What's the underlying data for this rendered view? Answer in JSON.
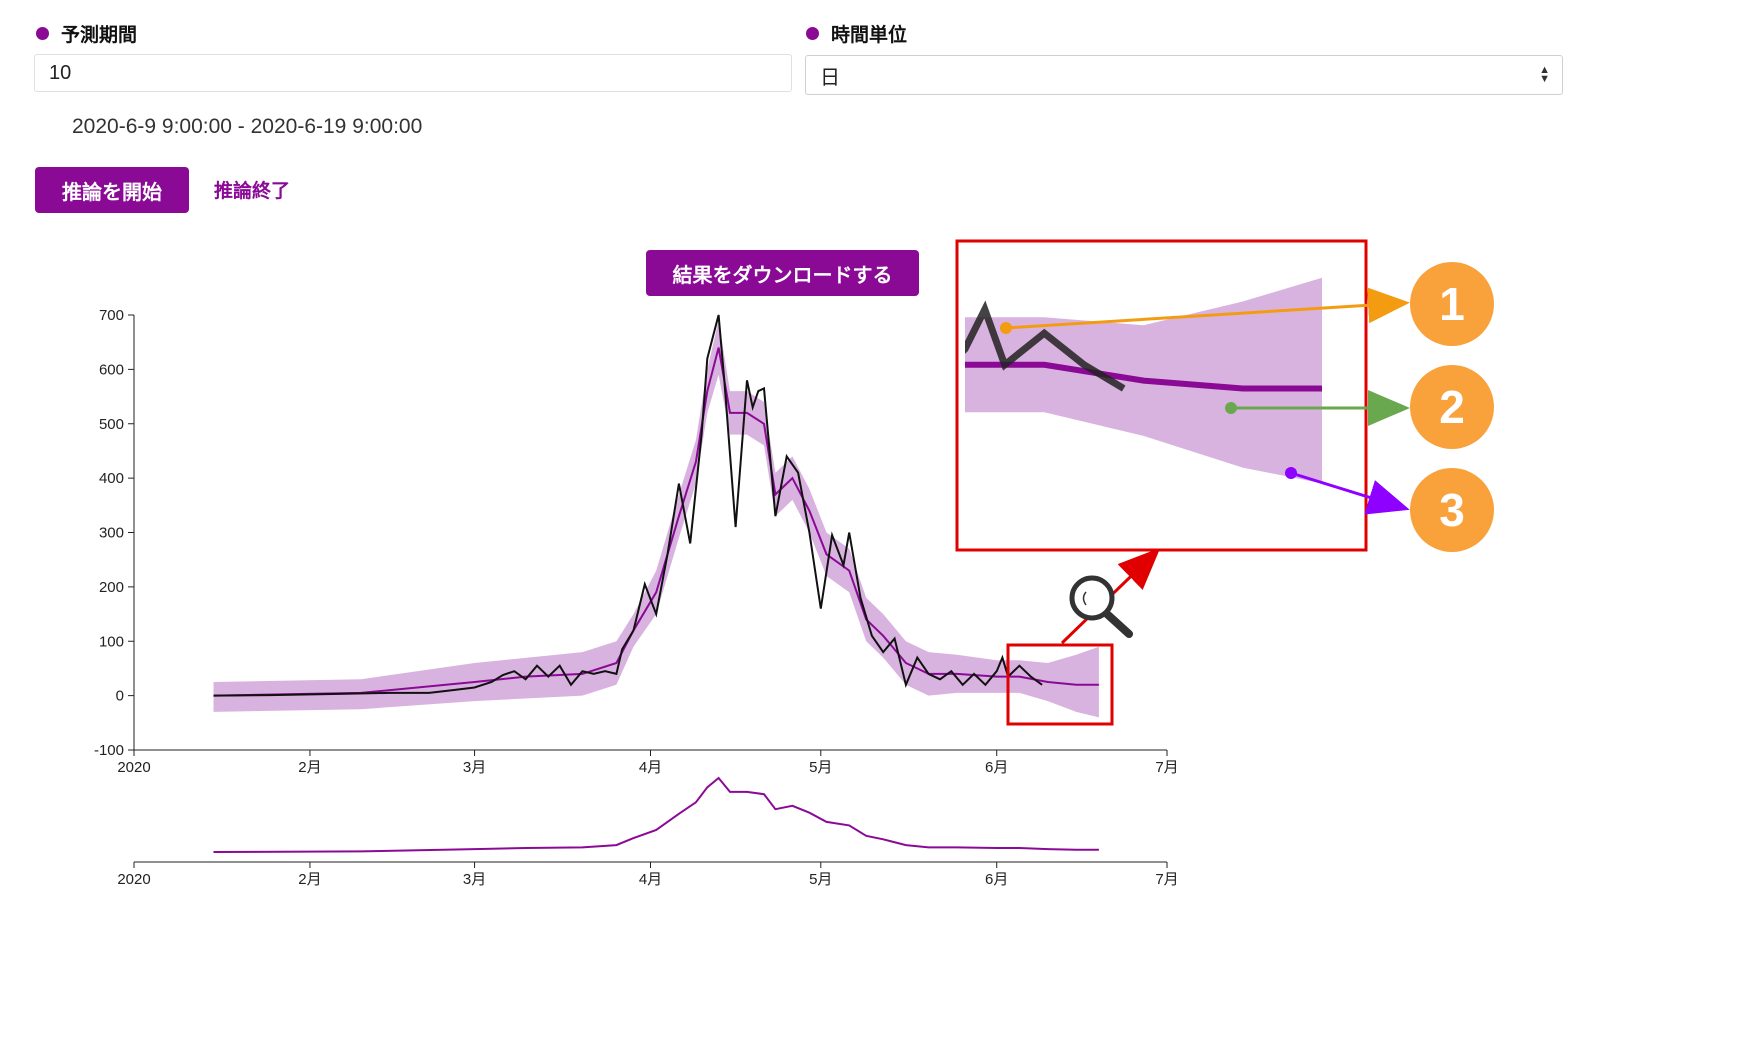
{
  "form": {
    "forecast_period": {
      "label": "予測期間",
      "value": "10"
    },
    "time_unit": {
      "label": "時間単位",
      "value": "日"
    },
    "date_range": "2020-6-9 9:00:00 - 2020-6-19 9:00:00"
  },
  "actions": {
    "start_label": "推論を開始",
    "end_label": "推論終了",
    "download_label": "結果をダウンロードする"
  },
  "colors": {
    "accent": "#8a0a96",
    "band": "#d9b3df",
    "actual": "#111111",
    "highlight": "#e00000",
    "callout": "#f9a23c",
    "arrow1": "#f39c12",
    "arrow2": "#6aa84f",
    "arrow3": "#8e00ff"
  },
  "icons": {
    "zoom": "magnifier-icon"
  },
  "callouts": [
    "1",
    "2",
    "3"
  ],
  "chart_data": {
    "type": "line",
    "xlim": [
      "2020-01-01",
      "2020-07-01"
    ],
    "ylim": [
      -100,
      700
    ],
    "yticks": [
      "-100",
      "0",
      "100",
      "200",
      "300",
      "400",
      "500",
      "600",
      "700"
    ],
    "xtick_labels": [
      "2020",
      "2月",
      "3月",
      "4月",
      "5月",
      "6月",
      "7月"
    ],
    "series": [
      {
        "role": "actual",
        "points": [
          [
            "2020-01-15",
            0
          ],
          [
            "2020-01-25",
            1
          ],
          [
            "2020-02-05",
            3
          ],
          [
            "2020-02-15",
            5
          ],
          [
            "2020-02-22",
            5
          ],
          [
            "2020-02-26",
            10
          ],
          [
            "2020-03-01",
            15
          ],
          [
            "2020-03-04",
            25
          ],
          [
            "2020-03-06",
            38
          ],
          [
            "2020-03-08",
            45
          ],
          [
            "2020-03-10",
            30
          ],
          [
            "2020-03-12",
            55
          ],
          [
            "2020-03-14",
            35
          ],
          [
            "2020-03-16",
            55
          ],
          [
            "2020-03-18",
            20
          ],
          [
            "2020-03-20",
            45
          ],
          [
            "2020-03-22",
            40
          ],
          [
            "2020-03-24",
            45
          ],
          [
            "2020-03-26",
            40
          ],
          [
            "2020-03-27",
            85
          ],
          [
            "2020-03-29",
            120
          ],
          [
            "2020-03-31",
            205
          ],
          [
            "2020-04-02",
            150
          ],
          [
            "2020-04-04",
            260
          ],
          [
            "2020-04-06",
            390
          ],
          [
            "2020-04-08",
            280
          ],
          [
            "2020-04-10",
            480
          ],
          [
            "2020-04-11",
            620
          ],
          [
            "2020-04-12",
            660
          ],
          [
            "2020-04-13",
            700
          ],
          [
            "2020-04-14",
            580
          ],
          [
            "2020-04-16",
            310
          ],
          [
            "2020-04-18",
            580
          ],
          [
            "2020-04-19",
            530
          ],
          [
            "2020-04-20",
            560
          ],
          [
            "2020-04-21",
            565
          ],
          [
            "2020-04-23",
            330
          ],
          [
            "2020-04-25",
            440
          ],
          [
            "2020-04-27",
            410
          ],
          [
            "2020-04-29",
            300
          ],
          [
            "2020-05-01",
            160
          ],
          [
            "2020-05-03",
            295
          ],
          [
            "2020-05-05",
            240
          ],
          [
            "2020-05-06",
            300
          ],
          [
            "2020-05-08",
            180
          ],
          [
            "2020-05-10",
            110
          ],
          [
            "2020-05-12",
            80
          ],
          [
            "2020-05-14",
            105
          ],
          [
            "2020-05-16",
            20
          ],
          [
            "2020-05-18",
            70
          ],
          [
            "2020-05-20",
            40
          ],
          [
            "2020-05-22",
            30
          ],
          [
            "2020-05-24",
            45
          ],
          [
            "2020-05-26",
            20
          ],
          [
            "2020-05-28",
            40
          ],
          [
            "2020-05-30",
            20
          ],
          [
            "2020-06-01",
            45
          ],
          [
            "2020-06-02",
            70
          ],
          [
            "2020-06-03",
            35
          ],
          [
            "2020-06-05",
            55
          ],
          [
            "2020-06-07",
            35
          ],
          [
            "2020-06-09",
            20
          ]
        ]
      },
      {
        "role": "forecast",
        "points": [
          [
            "2020-01-15",
            0
          ],
          [
            "2020-02-10",
            5
          ],
          [
            "2020-03-01",
            25
          ],
          [
            "2020-03-10",
            35
          ],
          [
            "2020-03-20",
            40
          ],
          [
            "2020-03-26",
            60
          ],
          [
            "2020-03-29",
            120
          ],
          [
            "2020-04-02",
            190
          ],
          [
            "2020-04-06",
            330
          ],
          [
            "2020-04-09",
            430
          ],
          [
            "2020-04-11",
            560
          ],
          [
            "2020-04-13",
            640
          ],
          [
            "2020-04-15",
            520
          ],
          [
            "2020-04-18",
            520
          ],
          [
            "2020-04-21",
            500
          ],
          [
            "2020-04-23",
            370
          ],
          [
            "2020-04-26",
            400
          ],
          [
            "2020-04-29",
            340
          ],
          [
            "2020-05-02",
            260
          ],
          [
            "2020-05-06",
            230
          ],
          [
            "2020-05-09",
            140
          ],
          [
            "2020-05-12",
            110
          ],
          [
            "2020-05-16",
            60
          ],
          [
            "2020-05-20",
            40
          ],
          [
            "2020-05-25",
            40
          ],
          [
            "2020-06-01",
            35
          ],
          [
            "2020-06-05",
            35
          ],
          [
            "2020-06-10",
            25
          ],
          [
            "2020-06-15",
            20
          ],
          [
            "2020-06-19",
            20
          ]
        ]
      },
      {
        "role": "band",
        "upper": [
          [
            "2020-01-15",
            25
          ],
          [
            "2020-02-10",
            30
          ],
          [
            "2020-03-01",
            60
          ],
          [
            "2020-03-20",
            80
          ],
          [
            "2020-03-26",
            100
          ],
          [
            "2020-03-29",
            150
          ],
          [
            "2020-04-02",
            230
          ],
          [
            "2020-04-06",
            370
          ],
          [
            "2020-04-09",
            470
          ],
          [
            "2020-04-11",
            600
          ],
          [
            "2020-04-13",
            690
          ],
          [
            "2020-04-15",
            560
          ],
          [
            "2020-04-18",
            560
          ],
          [
            "2020-04-21",
            540
          ],
          [
            "2020-04-23",
            410
          ],
          [
            "2020-04-26",
            440
          ],
          [
            "2020-04-29",
            380
          ],
          [
            "2020-05-02",
            300
          ],
          [
            "2020-05-06",
            270
          ],
          [
            "2020-05-09",
            180
          ],
          [
            "2020-05-12",
            150
          ],
          [
            "2020-05-16",
            100
          ],
          [
            "2020-05-20",
            80
          ],
          [
            "2020-05-25",
            75
          ],
          [
            "2020-06-01",
            65
          ],
          [
            "2020-06-05",
            65
          ],
          [
            "2020-06-10",
            60
          ],
          [
            "2020-06-15",
            75
          ],
          [
            "2020-06-19",
            90
          ]
        ],
        "lower": [
          [
            "2020-01-15",
            -30
          ],
          [
            "2020-02-10",
            -25
          ],
          [
            "2020-03-01",
            -10
          ],
          [
            "2020-03-20",
            0
          ],
          [
            "2020-03-26",
            20
          ],
          [
            "2020-03-29",
            90
          ],
          [
            "2020-04-02",
            150
          ],
          [
            "2020-04-06",
            290
          ],
          [
            "2020-04-09",
            390
          ],
          [
            "2020-04-11",
            520
          ],
          [
            "2020-04-13",
            590
          ],
          [
            "2020-04-15",
            480
          ],
          [
            "2020-04-18",
            480
          ],
          [
            "2020-04-21",
            460
          ],
          [
            "2020-04-23",
            330
          ],
          [
            "2020-04-26",
            360
          ],
          [
            "2020-04-29",
            300
          ],
          [
            "2020-05-02",
            220
          ],
          [
            "2020-05-06",
            190
          ],
          [
            "2020-05-09",
            100
          ],
          [
            "2020-05-12",
            70
          ],
          [
            "2020-05-16",
            20
          ],
          [
            "2020-05-20",
            0
          ],
          [
            "2020-05-25",
            5
          ],
          [
            "2020-06-01",
            5
          ],
          [
            "2020-06-05",
            5
          ],
          [
            "2020-06-10",
            -10
          ],
          [
            "2020-06-15",
            -30
          ],
          [
            "2020-06-19",
            -40
          ]
        ]
      }
    ]
  }
}
